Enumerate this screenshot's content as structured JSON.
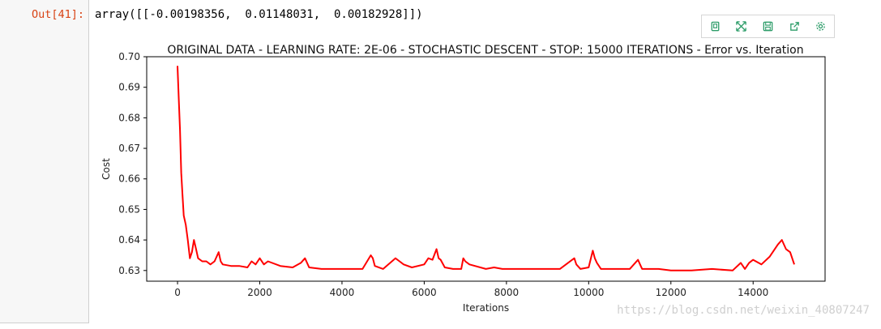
{
  "cell": {
    "prompt": "Out[41]:",
    "output_text": "array([[-0.00198356,  0.01148031,  0.00182928]])"
  },
  "toolbar": [
    {
      "name": "copy-icon"
    },
    {
      "name": "expand-icon"
    },
    {
      "name": "save-icon"
    },
    {
      "name": "share-icon"
    },
    {
      "name": "gear-icon"
    }
  ],
  "colors": {
    "line": "#ff0000",
    "toolbar_icon": "#2e9d6a",
    "prompt": "#d84315"
  },
  "watermark": "https://blog.csdn.net/weixin_40807247",
  "chart_data": {
    "type": "line",
    "title": "ORIGINAL DATA - LEARNING RATE: 2E-06 - STOCHASTIC DESCENT - STOP: 15000 ITERATIONS - Error vs. Iteration",
    "xlabel": "Iterations",
    "ylabel": "Cost",
    "xlim": [
      -750,
      15750
    ],
    "ylim": [
      0.6265,
      0.7
    ],
    "xticks": [
      0,
      2000,
      4000,
      6000,
      8000,
      10000,
      12000,
      14000
    ],
    "yticks": [
      0.63,
      0.64,
      0.65,
      0.66,
      0.67,
      0.68,
      0.69,
      0.7
    ],
    "ytick_labels": [
      "0.63",
      "0.64",
      "0.65",
      "0.66",
      "0.67",
      "0.68",
      "0.69",
      "0.70"
    ],
    "grid": false,
    "series": [
      {
        "color": "#ff0000",
        "x": [
          0,
          30,
          60,
          90,
          120,
          150,
          200,
          250,
          300,
          350,
          400,
          450,
          500,
          600,
          700,
          800,
          900,
          1000,
          1050,
          1100,
          1300,
          1500,
          1700,
          1800,
          1900,
          2000,
          2100,
          2200,
          2500,
          2800,
          3000,
          3100,
          3200,
          3500,
          4000,
          4500,
          4700,
          4750,
          4800,
          5000,
          5300,
          5400,
          5500,
          5700,
          6000,
          6100,
          6200,
          6300,
          6350,
          6400,
          6500,
          6700,
          6900,
          6950,
          7000,
          7100,
          7500,
          7700,
          7900,
          8000,
          8200,
          8500,
          9000,
          9300,
          9600,
          9650,
          9700,
          9800,
          10000,
          10100,
          10150,
          10200,
          10300,
          10500,
          11000,
          11200,
          11250,
          11300,
          11500,
          11700,
          12000,
          12500,
          13000,
          13500,
          13700,
          13800,
          13900,
          14000,
          14200,
          14400,
          14600,
          14700,
          14800,
          14900,
          15000
        ],
        "y": [
          0.697,
          0.686,
          0.676,
          0.662,
          0.655,
          0.648,
          0.645,
          0.64,
          0.634,
          0.636,
          0.64,
          0.637,
          0.634,
          0.633,
          0.633,
          0.632,
          0.633,
          0.636,
          0.633,
          0.632,
          0.6315,
          0.6315,
          0.631,
          0.633,
          0.632,
          0.634,
          0.632,
          0.633,
          0.6315,
          0.631,
          0.6325,
          0.634,
          0.631,
          0.6305,
          0.6305,
          0.6305,
          0.635,
          0.634,
          0.6315,
          0.6305,
          0.634,
          0.633,
          0.632,
          0.631,
          0.632,
          0.634,
          0.6335,
          0.637,
          0.634,
          0.6335,
          0.631,
          0.6305,
          0.6305,
          0.634,
          0.633,
          0.632,
          0.6305,
          0.631,
          0.6305,
          0.6305,
          0.6305,
          0.6305,
          0.6305,
          0.6305,
          0.6335,
          0.634,
          0.632,
          0.6305,
          0.631,
          0.6365,
          0.634,
          0.6325,
          0.6305,
          0.6305,
          0.6305,
          0.6335,
          0.632,
          0.6305,
          0.6305,
          0.6305,
          0.63,
          0.63,
          0.6305,
          0.63,
          0.6325,
          0.6305,
          0.6325,
          0.6335,
          0.632,
          0.6345,
          0.6385,
          0.64,
          0.637,
          0.636,
          0.632
        ]
      }
    ]
  }
}
